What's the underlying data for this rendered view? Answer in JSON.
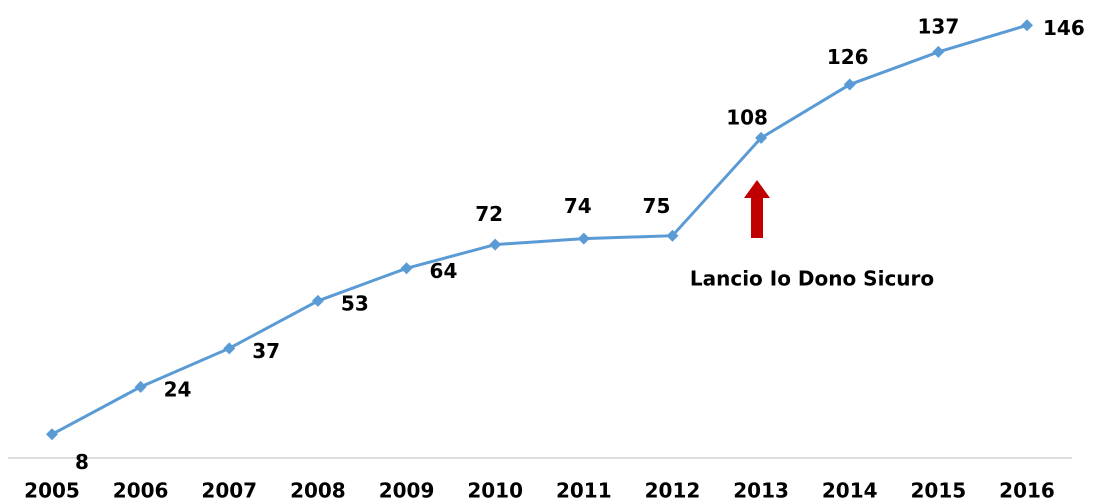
{
  "chart_data": {
    "type": "line",
    "categories": [
      "2005",
      "2006",
      "2007",
      "2008",
      "2009",
      "2010",
      "2011",
      "2012",
      "2013",
      "2014",
      "2015",
      "2016"
    ],
    "values": [
      8,
      24,
      37,
      53,
      64,
      72,
      74,
      75,
      108,
      126,
      137,
      146
    ],
    "color": "#5b9bd5",
    "ylim": [
      0,
      150
    ],
    "annotation": "Lancio Io Dono Sicuro",
    "annotation_color": "#c00000"
  }
}
